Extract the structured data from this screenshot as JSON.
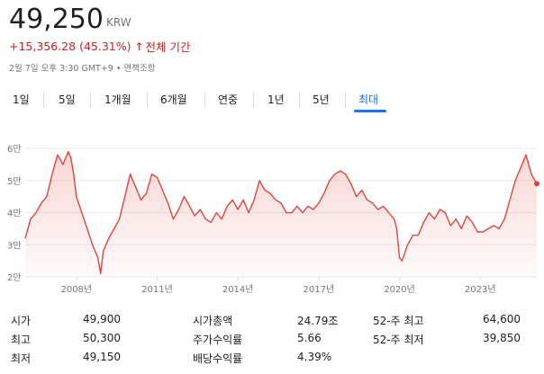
{
  "quote": {
    "price": "49,250",
    "currency": "KRW",
    "change": "+15,356.28 (45.31%)",
    "change_arrow": "↑",
    "period": "전체 기간",
    "timestamp": "2월 7일 오후 3:30 GMT+9 • 면책조항"
  },
  "tabs": [
    {
      "label": "1일"
    },
    {
      "label": "5일"
    },
    {
      "label": "1개월"
    },
    {
      "label": "6개월"
    },
    {
      "label": "연중"
    },
    {
      "label": "1년"
    },
    {
      "label": "5년"
    },
    {
      "label": "최대"
    }
  ],
  "active_tab": "최대",
  "colors": {
    "line": "#e0453c",
    "accent": "#1a73e8",
    "negative": "#c5221f"
  },
  "chart_data": {
    "type": "area",
    "y_tick_labels": [
      "2만",
      "3만",
      "4만",
      "5만",
      "6만"
    ],
    "y_ticks": [
      20000,
      30000,
      40000,
      50000,
      60000
    ],
    "ylim": [
      20000,
      62000
    ],
    "x_tick_labels": [
      "2008년",
      "2011년",
      "2014년",
      "2017년",
      "2020년",
      "2023년"
    ],
    "x_ticks": [
      2008,
      2011,
      2014,
      2017,
      2020,
      2023
    ],
    "xlim": [
      2006.1,
      2025.1
    ],
    "grid": true,
    "x": [
      2006.1,
      2006.3,
      2006.5,
      2006.7,
      2006.9,
      2007.1,
      2007.3,
      2007.5,
      2007.7,
      2007.8,
      2007.9,
      2008.0,
      2008.2,
      2008.4,
      2008.6,
      2008.8,
      2008.9,
      2009.0,
      2009.2,
      2009.4,
      2009.6,
      2009.8,
      2010.0,
      2010.2,
      2010.4,
      2010.6,
      2010.8,
      2011.0,
      2011.2,
      2011.4,
      2011.6,
      2011.8,
      2012.0,
      2012.2,
      2012.4,
      2012.6,
      2012.8,
      2013.0,
      2013.2,
      2013.4,
      2013.6,
      2013.8,
      2014.0,
      2014.2,
      2014.4,
      2014.6,
      2014.8,
      2015.0,
      2015.2,
      2015.4,
      2015.6,
      2015.8,
      2016.0,
      2016.2,
      2016.4,
      2016.6,
      2016.8,
      2017.0,
      2017.2,
      2017.4,
      2017.6,
      2017.8,
      2018.0,
      2018.2,
      2018.4,
      2018.6,
      2018.8,
      2019.0,
      2019.2,
      2019.4,
      2019.6,
      2019.8,
      2019.9,
      2020.0,
      2020.1,
      2020.3,
      2020.5,
      2020.7,
      2020.9,
      2021.1,
      2021.3,
      2021.5,
      2021.7,
      2021.9,
      2022.1,
      2022.3,
      2022.5,
      2022.7,
      2022.9,
      2023.1,
      2023.3,
      2023.5,
      2023.7,
      2023.9,
      2024.1,
      2024.3,
      2024.5,
      2024.7,
      2024.9,
      2025.1
    ],
    "values": [
      32000,
      38000,
      40000,
      43000,
      45000,
      52000,
      58000,
      55000,
      59000,
      57000,
      52000,
      45000,
      40000,
      35000,
      30000,
      26000,
      21000,
      28000,
      32000,
      35000,
      38000,
      45000,
      52000,
      48000,
      44000,
      46000,
      52000,
      51000,
      47000,
      43000,
      38000,
      41000,
      45000,
      42000,
      39000,
      41000,
      38000,
      37000,
      40000,
      38000,
      42000,
      44000,
      41000,
      44000,
      40000,
      44000,
      50000,
      47000,
      46000,
      44000,
      43000,
      40000,
      40000,
      42000,
      40000,
      42000,
      41000,
      43000,
      46000,
      50000,
      52000,
      53000,
      52000,
      49000,
      45000,
      47000,
      44000,
      43000,
      41000,
      42000,
      40000,
      38000,
      35000,
      26000,
      25000,
      30000,
      33000,
      33000,
      37000,
      40000,
      38000,
      41000,
      40000,
      36000,
      38000,
      35000,
      39000,
      37000,
      34000,
      34000,
      35000,
      36000,
      35000,
      38000,
      44000,
      50000,
      54000,
      58000,
      52000,
      49000
    ]
  },
  "stats": [
    {
      "label": "시가",
      "value": "49,900"
    },
    {
      "label": "최고",
      "value": "50,300"
    },
    {
      "label": "최저",
      "value": "49,150"
    },
    {
      "label": "시가총액",
      "value": "24.79조"
    },
    {
      "label": "주가수익률",
      "value": "5.66"
    },
    {
      "label": "배당수익률",
      "value": "4.39%"
    },
    {
      "label": "52-주 최고",
      "value": "64,600"
    },
    {
      "label": "52-주 최저",
      "value": "39,850"
    }
  ]
}
